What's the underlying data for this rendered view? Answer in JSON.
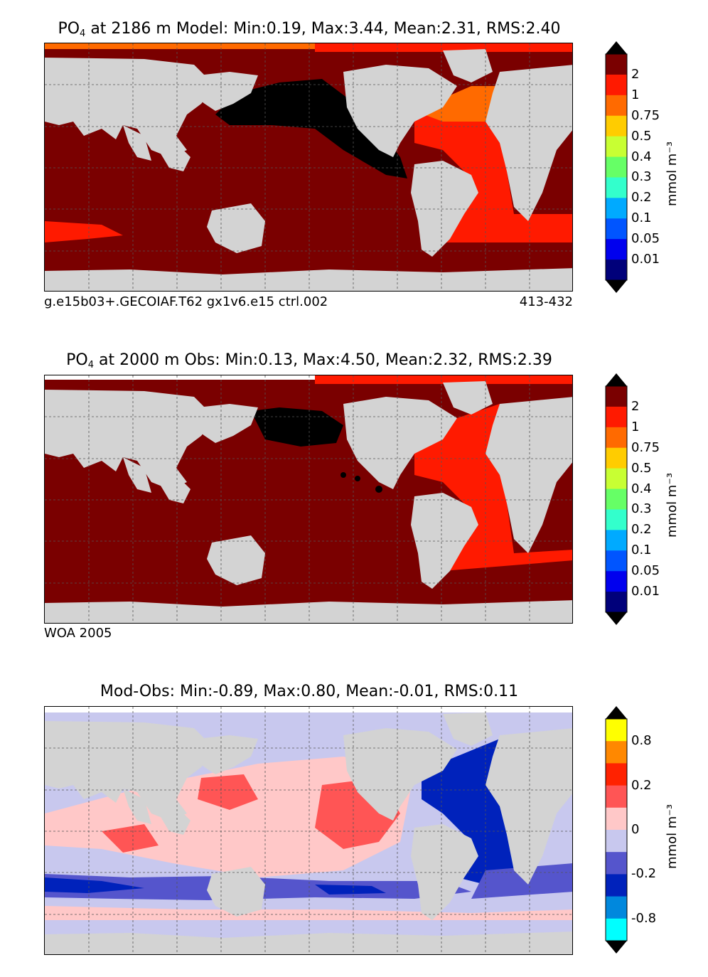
{
  "panels": [
    {
      "title_prefix": "PO",
      "title_sub": "4",
      "title_rest": " at 2186 m Model: Min:0.19, Max:3.44, Mean:2.31, RMS:2.40",
      "footer_left": "g.e15b03+.GECOIAF.T62 gx1v6.e15 ctrl.002",
      "footer_right": "413-432",
      "colorbar_unit": "mmol m⁻³",
      "colorbar_labels": [
        "2",
        "1",
        "0.75",
        "0.5",
        "0.4",
        "0.3",
        "0.2",
        "0.1",
        "0.05",
        "0.01"
      ],
      "colorbar_colors": [
        "#7a0000",
        "#ff1a00",
        "#ff6a00",
        "#ffcc00",
        "#c8ff33",
        "#66ff66",
        "#33ffcc",
        "#00aaff",
        "#0055ff",
        "#0000ee",
        "#00007a"
      ]
    },
    {
      "title_prefix": "PO",
      "title_sub": "4",
      "title_rest": " at 2000 m Obs: Min:0.13, Max:4.50, Mean:2.32, RMS:2.39",
      "footer_left": "WOA 2005",
      "footer_right": "",
      "colorbar_unit": "mmol m⁻³",
      "colorbar_labels": [
        "2",
        "1",
        "0.75",
        "0.5",
        "0.4",
        "0.3",
        "0.2",
        "0.1",
        "0.05",
        "0.01"
      ],
      "colorbar_colors": [
        "#7a0000",
        "#ff1a00",
        "#ff6a00",
        "#ffcc00",
        "#c8ff33",
        "#66ff66",
        "#33ffcc",
        "#00aaff",
        "#0055ff",
        "#0000ee",
        "#00007a"
      ]
    },
    {
      "title_prefix": "Mod-Obs: Min:-0.89, Max:0.80, Mean:-0.01, RMS:0.11",
      "title_sub": "",
      "title_rest": "",
      "footer_left": "",
      "footer_right": "",
      "colorbar_unit": "mmol m⁻³",
      "colorbar_labels": [
        "0.8",
        "0.2",
        "0",
        "-0.2",
        "-0.8"
      ],
      "colorbar_colors": [
        "#ffff00",
        "#ff8800",
        "#ff2200",
        "#ff5555",
        "#ffc8c8",
        "#c8c8ee",
        "#5555cc",
        "#0022bb",
        "#0088dd",
        "#00ffff"
      ]
    }
  ],
  "chart_data": [
    {
      "type": "heatmap",
      "title": "PO4 at 2186 m Model: Min:0.19, Max:3.44, Mean:2.31, RMS:2.40",
      "colorbar_ticks": [
        0.01,
        0.05,
        0.1,
        0.2,
        0.3,
        0.4,
        0.5,
        0.75,
        1,
        2
      ],
      "unit": "mmol m-3",
      "grid": true
    },
    {
      "type": "heatmap",
      "title": "PO4 at 2000 m Obs: Min:0.13, Max:4.50, Mean:2.32, RMS:2.39",
      "colorbar_ticks": [
        0.01,
        0.05,
        0.1,
        0.2,
        0.3,
        0.4,
        0.5,
        0.75,
        1,
        2
      ],
      "unit": "mmol m-3",
      "grid": true
    },
    {
      "type": "heatmap",
      "title": "Mod-Obs: Min:-0.89, Max:0.80, Mean:-0.01, RMS:0.11",
      "colorbar_ticks": [
        -0.8,
        -0.2,
        0,
        0.2,
        0.8
      ],
      "unit": "mmol m-3",
      "grid": true
    }
  ]
}
